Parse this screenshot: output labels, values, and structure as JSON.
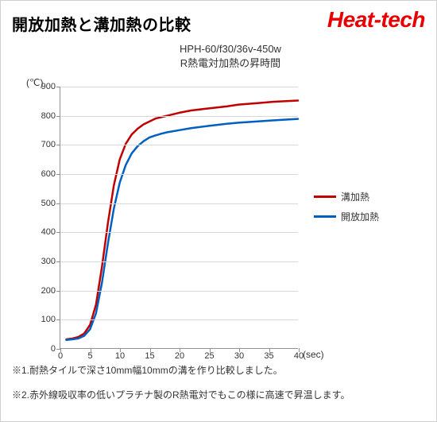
{
  "page_title": "開放加熱と溝加熱の比較",
  "logo_text": "Heat-tech",
  "chart": {
    "type": "line",
    "title1": "HPH-60/f30/36v-450w",
    "title2": "R熱電対加熱の昇時間",
    "y_axis_unit": "(℃)",
    "x_axis_unit": "(sec)",
    "title_fontsize": 13,
    "label_fontsize": 12,
    "tick_fontsize": 11,
    "background_color": "#ffffff",
    "grid_color": "#d8d8d8",
    "axis_color": "#909090",
    "line_width": 2.5,
    "xlim": [
      0,
      40
    ],
    "xtick_step": 5,
    "xticks": [
      0,
      5,
      10,
      15,
      20,
      25,
      30,
      35,
      40
    ],
    "ylim": [
      0,
      900
    ],
    "ytick_step": 100,
    "yticks": [
      0,
      100,
      200,
      300,
      400,
      500,
      600,
      700,
      800,
      900
    ],
    "series": [
      {
        "name": "溝加熱",
        "color": "#c00000",
        "x": [
          1,
          2,
          3,
          4,
          5,
          6,
          7,
          8,
          9,
          10,
          11,
          12,
          13,
          14,
          15,
          16,
          17,
          18,
          20,
          22,
          25,
          28,
          30,
          33,
          36,
          40
        ],
        "y": [
          30,
          33,
          38,
          50,
          80,
          150,
          280,
          430,
          560,
          650,
          703,
          735,
          755,
          770,
          780,
          790,
          795,
          800,
          810,
          818,
          825,
          832,
          838,
          843,
          848,
          852
        ]
      },
      {
        "name": "開放加熱",
        "color": "#0060c0",
        "x": [
          1,
          2,
          3,
          4,
          5,
          6,
          7,
          8,
          9,
          10,
          11,
          12,
          13,
          14,
          15,
          16,
          17,
          18,
          20,
          22,
          25,
          28,
          30,
          33,
          36,
          40
        ],
        "y": [
          28,
          30,
          33,
          42,
          65,
          120,
          225,
          360,
          480,
          570,
          630,
          670,
          695,
          712,
          725,
          732,
          738,
          743,
          750,
          757,
          765,
          772,
          776,
          780,
          784,
          789
        ]
      }
    ]
  },
  "legend": {
    "items": [
      {
        "label": "溝加熱",
        "color": "#c00000"
      },
      {
        "label": "開放加熱",
        "color": "#0060c0"
      }
    ]
  },
  "notes": {
    "note1": "※1.耐熱タイルで深さ10mm幅10mmの溝を作り比較しました。",
    "note2": "※2.赤外線吸収率の低いプラチナ製のR熱電対でもこの様に高速で昇温します。",
    "text_color": "#333333"
  },
  "colors": {
    "logo": "#e80000",
    "title": "#000000",
    "text": "#333333"
  }
}
